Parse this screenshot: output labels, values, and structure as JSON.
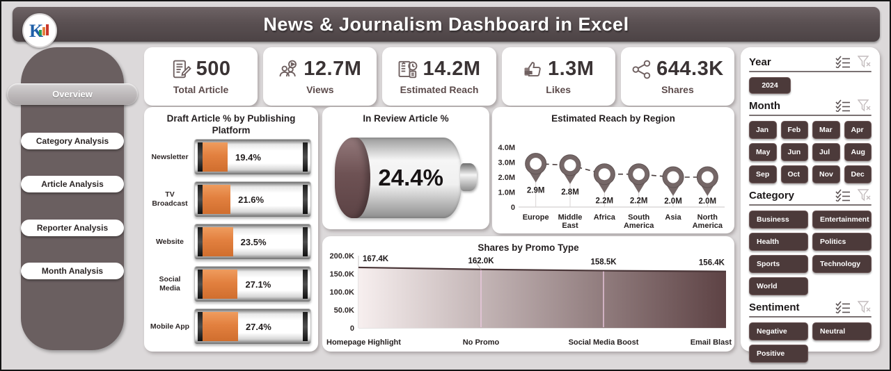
{
  "header": {
    "title": "News & Journalism Dashboard in Excel",
    "logo_text": "K"
  },
  "sidebar": {
    "items": [
      {
        "label": "Overview",
        "active": true
      },
      {
        "label": "Category Analysis",
        "active": false
      },
      {
        "label": "Article Analysis",
        "active": false
      },
      {
        "label": "Reporter Analysis",
        "active": false
      },
      {
        "label": "Month Analysis",
        "active": false
      }
    ]
  },
  "kpis": [
    {
      "icon": "article-icon",
      "value": "500",
      "label": "Total Article"
    },
    {
      "icon": "views-icon",
      "value": "12.7M",
      "label": "Views"
    },
    {
      "icon": "reach-icon",
      "value": "14.2M",
      "label": "Estimated Reach"
    },
    {
      "icon": "likes-icon",
      "value": "1.3M",
      "label": "Likes"
    },
    {
      "icon": "shares-icon",
      "value": "644.3K",
      "label": "Shares"
    }
  ],
  "chart_data": [
    {
      "type": "bar",
      "subtype": "battery-bars",
      "title": "Draft Article % by Publishing Platform",
      "categories": [
        "Newsletter",
        "TV Broadcast",
        "Website",
        "Social Media",
        "Mobile App"
      ],
      "values": [
        19.4,
        21.6,
        23.5,
        27.1,
        27.4
      ],
      "value_labels": [
        "19.4%",
        "21.6%",
        "23.5%",
        "27.1%",
        "27.4%"
      ],
      "xlabel": "",
      "ylabel": "",
      "fill_color": "#e2803f"
    },
    {
      "type": "gauge",
      "subtype": "battery",
      "title": "In Review Article %",
      "value": 24.4,
      "value_label": "24.4%",
      "fill_color": "#6e5254"
    },
    {
      "type": "scatter",
      "subtype": "map-pins",
      "title": "Estimated Reach by Region",
      "categories": [
        "Europe",
        "Middle East",
        "Africa",
        "South America",
        "Asia",
        "North America"
      ],
      "values": [
        2.9,
        2.8,
        2.2,
        2.2,
        2.0,
        2.0
      ],
      "value_labels": [
        "2.9M",
        "2.8M",
        "2.2M",
        "2.2M",
        "2.0M",
        "2.0M"
      ],
      "ylim": [
        0,
        4
      ],
      "yticks": [
        "0",
        "1.0M",
        "2.0M",
        "3.0M",
        "4.0M"
      ],
      "grid": true,
      "pin_color": "#756767",
      "line_style": "dashed"
    },
    {
      "type": "area",
      "title": "Shares by Promo Type",
      "categories": [
        "Homepage Highlight",
        "No Promo",
        "Social Media Boost",
        "Email Blast"
      ],
      "values": [
        167.4,
        162.0,
        158.5,
        156.4
      ],
      "value_labels": [
        "167.4K",
        "162.0K",
        "158.5K",
        "156.4K"
      ],
      "ylim": [
        0,
        200
      ],
      "yticks": [
        "0",
        "50.0K",
        "100.0K",
        "150.0K",
        "200.0K"
      ],
      "grid": true,
      "gradient": [
        "#f7efef",
        "#5d4244"
      ]
    }
  ],
  "filters": {
    "year": {
      "label": "Year",
      "options": [
        "2024"
      ]
    },
    "month": {
      "label": "Month",
      "options": [
        "Jan",
        "Feb",
        "Mar",
        "Apr",
        "May",
        "Jun",
        "Jul",
        "Aug",
        "Sep",
        "Oct",
        "Nov",
        "Dec"
      ]
    },
    "category": {
      "label": "Category",
      "options": [
        "Business",
        "Entertainment",
        "Health",
        "Politics",
        "Sports",
        "Technology",
        "World"
      ]
    },
    "sentiment": {
      "label": "Sentiment",
      "options": [
        "Negative",
        "Neutral",
        "Positive"
      ]
    }
  },
  "colors": {
    "accent_orange": "#e2803f",
    "slicer_brown": "#4c3a3a",
    "sidebar_brown": "#6a5f60",
    "header_brown": "#5a5052",
    "gauge_brown": "#6e5254",
    "pin_taupe": "#756767"
  }
}
